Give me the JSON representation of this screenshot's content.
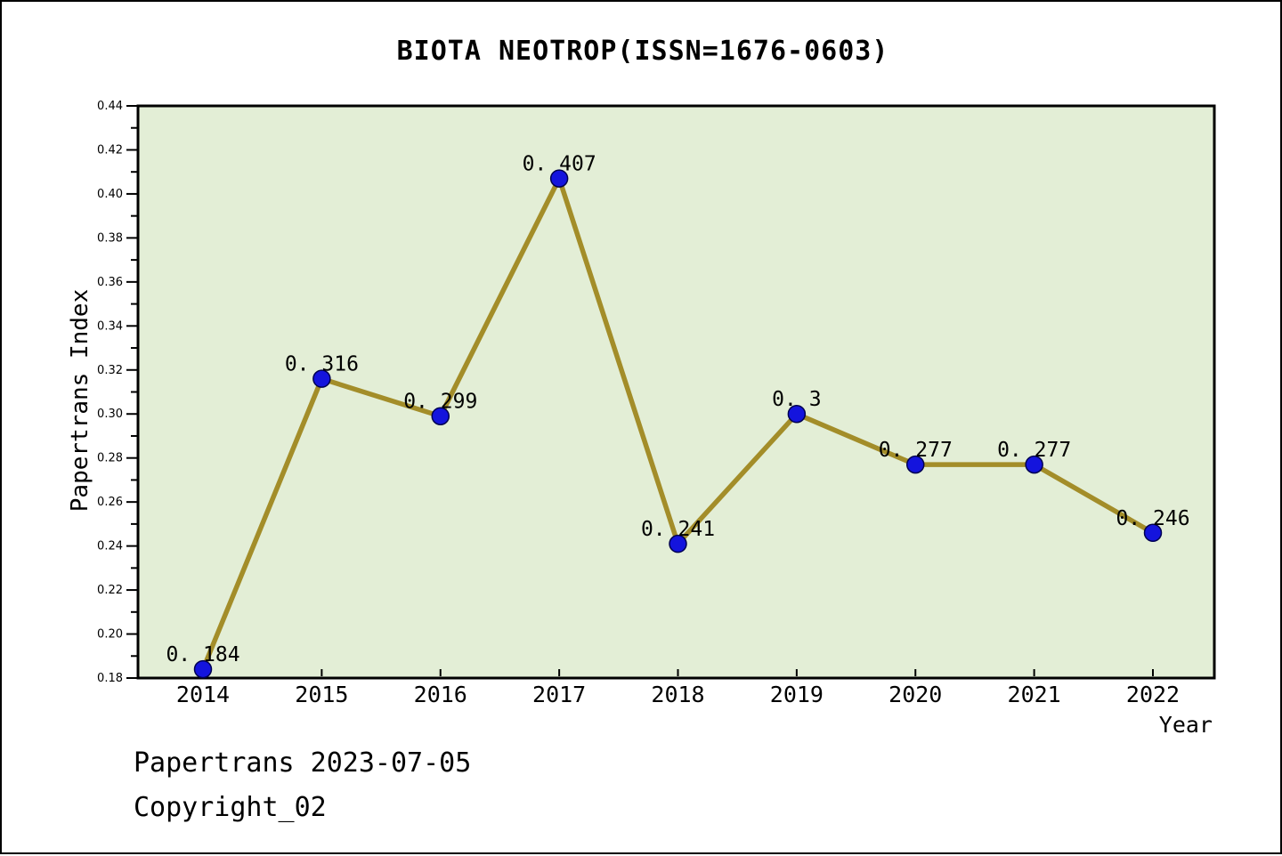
{
  "footer": {
    "line1": "Papertrans 2023-07-05",
    "line2": "Copyright_02"
  },
  "chart_data": {
    "type": "line",
    "title": "BIOTA NEOTROP(ISSN=1676-0603)",
    "xlabel": "Year",
    "ylabel": "Papertrans Index",
    "categories": [
      "2014",
      "2015",
      "2016",
      "2017",
      "2018",
      "2019",
      "2020",
      "2021",
      "2022"
    ],
    "values": [
      0.184,
      0.316,
      0.299,
      0.407,
      0.241,
      0.3,
      0.277,
      0.277,
      0.246
    ],
    "point_labels": [
      "0.184",
      "0.316",
      "0.299",
      "0.407",
      "0.241",
      "0.3",
      "0.277",
      "0.277",
      "0.246"
    ],
    "ylim": [
      0.18,
      0.44
    ],
    "ytick_major_step": 0.02,
    "ytick_minor_step": 0.01,
    "grid": false,
    "legend": "none",
    "colors": {
      "plot_bg": "#e3eed6",
      "line": "#a38d29",
      "marker": "#1414dd",
      "marker_edge": "#000050",
      "text": "#000000",
      "frame": "#000000"
    }
  }
}
